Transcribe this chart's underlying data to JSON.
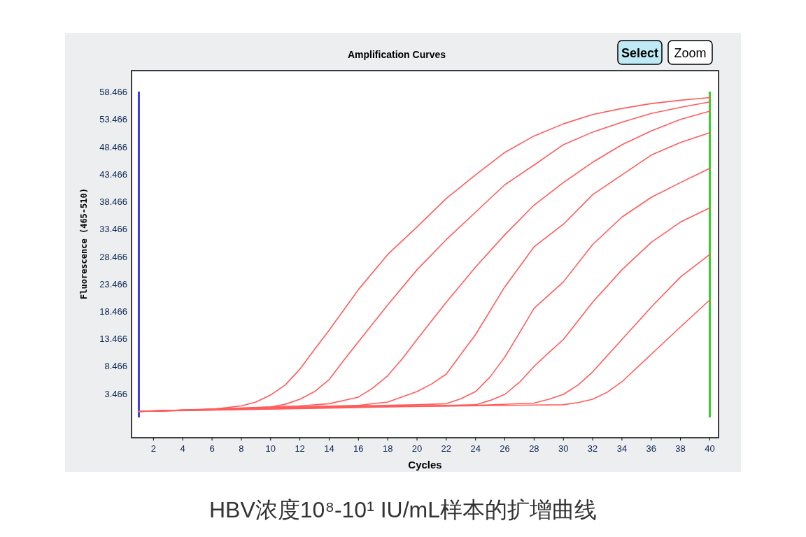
{
  "chart_data": {
    "type": "line",
    "title": "Amplification Curves",
    "xlabel": "Cycles",
    "ylabel": "Fluorescence (465-510)",
    "annotations": [
      "HBV浓度10⁸-10¹ IU/mL样本的扩增曲线",
      "Select",
      "Zoom"
    ],
    "xlim": [
      0.5,
      40.6
    ],
    "ylim": [
      -4.6,
      62.3
    ],
    "xticks": [
      2,
      4,
      6,
      8,
      10,
      12,
      14,
      16,
      18,
      20,
      22,
      24,
      26,
      28,
      30,
      32,
      34,
      36,
      38,
      40
    ],
    "yticks": [
      3.466,
      8.466,
      13.466,
      18.466,
      23.466,
      28.466,
      33.466,
      38.466,
      43.466,
      48.466,
      53.466,
      58.466
    ],
    "grid": false,
    "marker": "none",
    "line_style": "solid",
    "ref_lines": [
      {
        "axis": "x",
        "value": 1,
        "color": "#3b3bf0"
      },
      {
        "axis": "x",
        "value": 40,
        "color": "#3ccc2a"
      }
    ],
    "series": [
      {
        "color": "#ff5c5c",
        "x": [
          1,
          4,
          6,
          8,
          9,
          10,
          11,
          12,
          13,
          14,
          16,
          18,
          20,
          22,
          24,
          26,
          28,
          30,
          32,
          34,
          36,
          38,
          40
        ],
        "values": [
          0.2,
          0.4,
          0.6,
          1.2,
          1.9,
          3.2,
          5.0,
          7.9,
          11.5,
          15.0,
          22.4,
          28.8,
          33.8,
          39.0,
          43.3,
          47.4,
          50.4,
          52.6,
          54.3,
          55.4,
          56.3,
          56.9,
          57.4
        ]
      },
      {
        "color": "#ff5c5c",
        "x": [
          1,
          6,
          10,
          11,
          12,
          13,
          14,
          15,
          16,
          18,
          20,
          22,
          24,
          26,
          28,
          30,
          32,
          34,
          36,
          38,
          40
        ],
        "values": [
          0.2,
          0.6,
          1.0,
          1.5,
          2.4,
          3.8,
          6.0,
          9.5,
          12.9,
          19.6,
          26.0,
          31.5,
          36.5,
          41.5,
          45.1,
          48.8,
          51.1,
          52.9,
          54.5,
          55.6,
          56.6
        ]
      },
      {
        "color": "#ff5c5c",
        "x": [
          1,
          8,
          12,
          14,
          16,
          17,
          18,
          19,
          20,
          22,
          24,
          26,
          28,
          30,
          32,
          34,
          36,
          38,
          40
        ],
        "values": [
          0.2,
          0.8,
          1.2,
          1.6,
          2.8,
          4.5,
          6.7,
          9.8,
          13.3,
          20.1,
          26.5,
          32.4,
          37.8,
          41.9,
          45.6,
          48.8,
          51.3,
          53.4,
          54.9
        ]
      },
      {
        "color": "#ff5c5c",
        "x": [
          1,
          10,
          16,
          18,
          20,
          21,
          22,
          24,
          26,
          28,
          30,
          32,
          34,
          36,
          38,
          40
        ],
        "values": [
          0.2,
          0.9,
          1.3,
          1.9,
          3.8,
          5.2,
          7.0,
          14.2,
          22.9,
          30.2,
          34.3,
          39.7,
          43.3,
          46.9,
          49.2,
          51.0
        ]
      },
      {
        "color": "#ff5c5c",
        "x": [
          1,
          12,
          20,
          22,
          23,
          24,
          25,
          26,
          27,
          28,
          30,
          32,
          34,
          36,
          38,
          40
        ],
        "values": [
          0.2,
          1.0,
          1.4,
          1.6,
          2.5,
          3.8,
          6.5,
          10.1,
          14.5,
          19.0,
          23.8,
          30.6,
          35.6,
          39.2,
          41.9,
          44.5
        ]
      },
      {
        "color": "#ff5c5c",
        "x": [
          1,
          14,
          22,
          24,
          25,
          26,
          27,
          28,
          29,
          30,
          32,
          34,
          36,
          38,
          40
        ],
        "values": [
          0.2,
          1.0,
          1.3,
          1.4,
          2.2,
          3.3,
          5.5,
          8.4,
          10.9,
          13.3,
          20.1,
          26.0,
          31.0,
          34.7,
          37.3
        ]
      },
      {
        "color": "#ff5c5c",
        "x": [
          1,
          16,
          24,
          28,
          29,
          30,
          31,
          32,
          34,
          36,
          38,
          40
        ],
        "values": [
          0.2,
          1.0,
          1.3,
          1.7,
          2.4,
          3.3,
          5.0,
          7.4,
          13.3,
          19.2,
          24.7,
          28.8
        ]
      },
      {
        "color": "#ff5c5c",
        "x": [
          1,
          18,
          26,
          30,
          31,
          32,
          33,
          34,
          36,
          38,
          40
        ],
        "values": [
          0.2,
          1.0,
          1.3,
          1.4,
          1.8,
          2.4,
          3.7,
          5.6,
          10.6,
          15.6,
          20.5
        ]
      }
    ]
  }
}
